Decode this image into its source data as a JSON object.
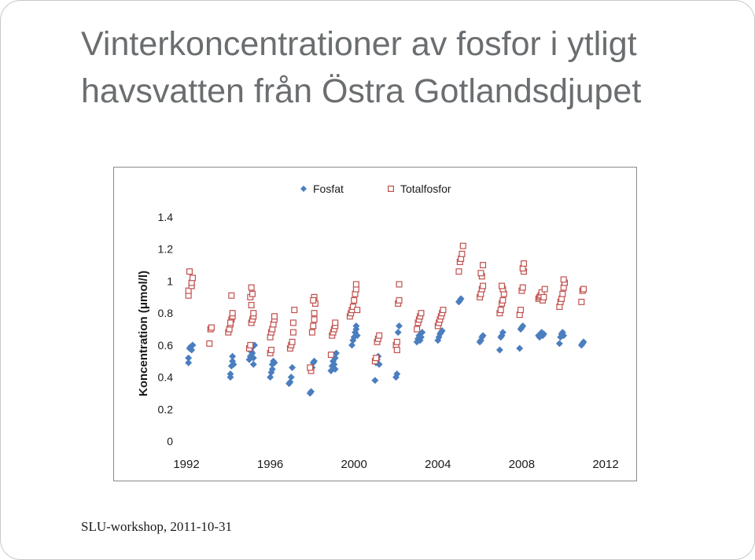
{
  "slide": {
    "title_line1": "Vinterkoncentrationer av fosfor i ytligt",
    "title_line2": "havsvatten från Östra Gotlandsdjupet",
    "footer": "SLU-workshop, 2011-10-31"
  },
  "chart_data": {
    "type": "scatter",
    "title": "",
    "xlabel": "",
    "ylabel": "Koncentration (μmol/l)",
    "xlim": [
      1992,
      2012
    ],
    "ylim": [
      0,
      1.4
    ],
    "xticks": [
      1992,
      1996,
      2000,
      2004,
      2008,
      2012
    ],
    "yticks": [
      0,
      0.2,
      0.4,
      0.6,
      0.8,
      1,
      1.2,
      1.4
    ],
    "ytick_labels": [
      "0",
      "0.2",
      "0.4",
      "0.6",
      "0.8",
      "1",
      "1.2",
      "1.4"
    ],
    "grid": false,
    "legend_position": "top",
    "series": [
      {
        "name": "Fosfat",
        "marker": "diamond",
        "color": "#4a7ebf",
        "points": [
          [
            1992.1,
            0.49
          ],
          [
            1992.1,
            0.52
          ],
          [
            1992.15,
            0.58
          ],
          [
            1992.2,
            0.59
          ],
          [
            1992.25,
            0.57
          ],
          [
            1992.3,
            0.6
          ],
          [
            1994.1,
            0.4
          ],
          [
            1994.1,
            0.42
          ],
          [
            1994.15,
            0.47
          ],
          [
            1994.2,
            0.5
          ],
          [
            1994.2,
            0.53
          ],
          [
            1994.25,
            0.48
          ],
          [
            1995.0,
            0.51
          ],
          [
            1995.05,
            0.53
          ],
          [
            1995.1,
            0.56
          ],
          [
            1995.1,
            0.58
          ],
          [
            1995.15,
            0.55
          ],
          [
            1995.2,
            0.52
          ],
          [
            1995.2,
            0.48
          ],
          [
            1995.25,
            0.6
          ],
          [
            1996.0,
            0.4
          ],
          [
            1996.05,
            0.43
          ],
          [
            1996.1,
            0.45
          ],
          [
            1996.1,
            0.48
          ],
          [
            1996.15,
            0.5
          ],
          [
            1996.2,
            0.49
          ],
          [
            1996.9,
            0.36
          ],
          [
            1996.95,
            0.37
          ],
          [
            1997.0,
            0.4
          ],
          [
            1997.05,
            0.46
          ],
          [
            1997.9,
            0.3
          ],
          [
            1997.95,
            0.31
          ],
          [
            1998.0,
            0.46
          ],
          [
            1998.05,
            0.49
          ],
          [
            1998.1,
            0.5
          ],
          [
            1998.9,
            0.44
          ],
          [
            1998.95,
            0.47
          ],
          [
            1999.0,
            0.5
          ],
          [
            1999.05,
            0.48
          ],
          [
            1999.1,
            0.45
          ],
          [
            1999.1,
            0.52
          ],
          [
            1999.15,
            0.55
          ],
          [
            1999.9,
            0.6
          ],
          [
            1999.95,
            0.63
          ],
          [
            2000.0,
            0.65
          ],
          [
            2000.05,
            0.68
          ],
          [
            2000.1,
            0.7
          ],
          [
            2000.1,
            0.72
          ],
          [
            2000.15,
            0.66
          ],
          [
            2001.0,
            0.38
          ],
          [
            2001.05,
            0.49
          ],
          [
            2001.1,
            0.51
          ],
          [
            2001.15,
            0.53
          ],
          [
            2001.2,
            0.48
          ],
          [
            2002.0,
            0.4
          ],
          [
            2002.05,
            0.42
          ],
          [
            2002.1,
            0.68
          ],
          [
            2002.15,
            0.72
          ],
          [
            2003.0,
            0.62
          ],
          [
            2003.05,
            0.64
          ],
          [
            2003.1,
            0.66
          ],
          [
            2003.15,
            0.63
          ],
          [
            2003.2,
            0.65
          ],
          [
            2003.25,
            0.68
          ],
          [
            2004.0,
            0.63
          ],
          [
            2004.05,
            0.65
          ],
          [
            2004.1,
            0.67
          ],
          [
            2004.15,
            0.68
          ],
          [
            2004.2,
            0.69
          ],
          [
            2005.0,
            0.87
          ],
          [
            2005.05,
            0.88
          ],
          [
            2005.1,
            0.89
          ],
          [
            2006.0,
            0.62
          ],
          [
            2006.05,
            0.63
          ],
          [
            2006.1,
            0.65
          ],
          [
            2006.15,
            0.66
          ],
          [
            2006.95,
            0.57
          ],
          [
            2007.0,
            0.65
          ],
          [
            2007.05,
            0.66
          ],
          [
            2007.1,
            0.68
          ],
          [
            2007.9,
            0.58
          ],
          [
            2007.95,
            0.7
          ],
          [
            2008.0,
            0.71
          ],
          [
            2008.05,
            0.72
          ],
          [
            2008.8,
            0.66
          ],
          [
            2008.85,
            0.65
          ],
          [
            2008.9,
            0.67
          ],
          [
            2008.95,
            0.68
          ],
          [
            2009.0,
            0.66
          ],
          [
            2009.05,
            0.67
          ],
          [
            2009.8,
            0.61
          ],
          [
            2009.85,
            0.65
          ],
          [
            2009.9,
            0.67
          ],
          [
            2009.95,
            0.68
          ],
          [
            2010.0,
            0.66
          ],
          [
            2010.85,
            0.6
          ],
          [
            2010.9,
            0.61
          ],
          [
            2010.95,
            0.62
          ]
        ]
      },
      {
        "name": "Totalfosfor",
        "marker": "square",
        "color": "#c0504d",
        "points": [
          [
            1992.1,
            0.91
          ],
          [
            1992.1,
            0.94
          ],
          [
            1992.15,
            1.06
          ],
          [
            1992.25,
            0.97
          ],
          [
            1992.25,
            0.99
          ],
          [
            1992.3,
            1.02
          ],
          [
            1993.1,
            0.61
          ],
          [
            1993.15,
            0.7
          ],
          [
            1993.2,
            0.71
          ],
          [
            1994.0,
            0.68
          ],
          [
            1994.05,
            0.7
          ],
          [
            1994.1,
            0.73
          ],
          [
            1994.15,
            0.76
          ],
          [
            1994.2,
            0.78
          ],
          [
            1994.2,
            0.8
          ],
          [
            1994.15,
            0.91
          ],
          [
            1994.1,
            0.74
          ],
          [
            1995.0,
            0.58
          ],
          [
            1995.05,
            0.6
          ],
          [
            1995.1,
            0.74
          ],
          [
            1995.15,
            0.76
          ],
          [
            1995.2,
            0.78
          ],
          [
            1995.2,
            0.8
          ],
          [
            1995.1,
            0.85
          ],
          [
            1995.05,
            0.9
          ],
          [
            1995.1,
            0.96
          ],
          [
            1995.15,
            0.92
          ],
          [
            1996.0,
            0.55
          ],
          [
            1996.05,
            0.57
          ],
          [
            1996.0,
            0.65
          ],
          [
            1996.05,
            0.68
          ],
          [
            1996.1,
            0.7
          ],
          [
            1996.15,
            0.73
          ],
          [
            1996.2,
            0.76
          ],
          [
            1996.2,
            0.78
          ],
          [
            1996.95,
            0.58
          ],
          [
            1997.0,
            0.6
          ],
          [
            1997.05,
            0.62
          ],
          [
            1997.1,
            0.68
          ],
          [
            1997.1,
            0.74
          ],
          [
            1997.15,
            0.82
          ],
          [
            1998.0,
            0.68
          ],
          [
            1998.05,
            0.72
          ],
          [
            1998.1,
            0.76
          ],
          [
            1998.1,
            0.8
          ],
          [
            1998.15,
            0.86
          ],
          [
            1998.1,
            0.9
          ],
          [
            1998.05,
            0.88
          ],
          [
            1997.95,
            0.44
          ],
          [
            1997.9,
            0.46
          ],
          [
            1998.9,
            0.54
          ],
          [
            1998.95,
            0.66
          ],
          [
            1999.0,
            0.68
          ],
          [
            1999.05,
            0.7
          ],
          [
            1999.1,
            0.72
          ],
          [
            1999.1,
            0.74
          ],
          [
            1999.8,
            0.78
          ],
          [
            1999.85,
            0.8
          ],
          [
            1999.9,
            0.82
          ],
          [
            1999.95,
            0.84
          ],
          [
            2000.0,
            0.88
          ],
          [
            2000.05,
            0.92
          ],
          [
            2000.1,
            0.95
          ],
          [
            2000.1,
            0.98
          ],
          [
            2000.15,
            0.82
          ],
          [
            2001.0,
            0.5
          ],
          [
            2001.05,
            0.52
          ],
          [
            2001.1,
            0.62
          ],
          [
            2001.15,
            0.64
          ],
          [
            2001.2,
            0.66
          ],
          [
            2002.0,
            0.6
          ],
          [
            2002.05,
            0.62
          ],
          [
            2002.1,
            0.86
          ],
          [
            2002.15,
            0.88
          ],
          [
            2002.15,
            0.98
          ],
          [
            2002.05,
            0.57
          ],
          [
            2003.0,
            0.7
          ],
          [
            2003.05,
            0.74
          ],
          [
            2003.1,
            0.76
          ],
          [
            2003.15,
            0.78
          ],
          [
            2003.2,
            0.8
          ],
          [
            2004.0,
            0.72
          ],
          [
            2004.05,
            0.74
          ],
          [
            2004.1,
            0.76
          ],
          [
            2004.15,
            0.78
          ],
          [
            2004.2,
            0.8
          ],
          [
            2004.25,
            0.82
          ],
          [
            2005.0,
            1.06
          ],
          [
            2005.05,
            1.12
          ],
          [
            2005.1,
            1.14
          ],
          [
            2005.15,
            1.17
          ],
          [
            2005.2,
            1.22
          ],
          [
            2006.0,
            0.9
          ],
          [
            2006.05,
            0.92
          ],
          [
            2006.1,
            0.95
          ],
          [
            2006.15,
            0.97
          ],
          [
            2006.1,
            1.03
          ],
          [
            2006.05,
            1.05
          ],
          [
            2006.15,
            1.1
          ],
          [
            2006.95,
            0.8
          ],
          [
            2007.0,
            0.82
          ],
          [
            2007.05,
            0.86
          ],
          [
            2007.1,
            0.88
          ],
          [
            2007.15,
            0.92
          ],
          [
            2007.1,
            0.95
          ],
          [
            2007.05,
            0.97
          ],
          [
            2007.9,
            0.79
          ],
          [
            2007.95,
            0.82
          ],
          [
            2008.0,
            0.94
          ],
          [
            2008.05,
            0.96
          ],
          [
            2008.1,
            1.06
          ],
          [
            2008.05,
            1.08
          ],
          [
            2008.1,
            1.11
          ],
          [
            2008.8,
            0.89
          ],
          [
            2008.85,
            0.9
          ],
          [
            2008.9,
            0.91
          ],
          [
            2008.95,
            0.93
          ],
          [
            2009.0,
            0.88
          ],
          [
            2009.05,
            0.9
          ],
          [
            2009.1,
            0.95
          ],
          [
            2009.8,
            0.84
          ],
          [
            2009.85,
            0.87
          ],
          [
            2009.9,
            0.89
          ],
          [
            2009.95,
            0.92
          ],
          [
            2010.0,
            0.96
          ],
          [
            2010.05,
            0.99
          ],
          [
            2010.0,
            1.01
          ],
          [
            2010.85,
            0.87
          ],
          [
            2010.9,
            0.94
          ],
          [
            2010.95,
            0.95
          ]
        ]
      }
    ]
  }
}
